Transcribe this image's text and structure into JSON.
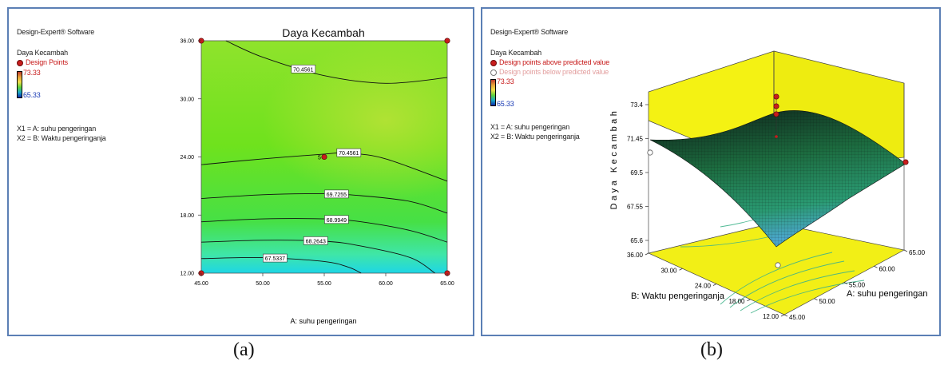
{
  "panel_a": {
    "software": "Design-Expert® Software",
    "response": "Daya Kecambah",
    "points_label": "Design Points",
    "max": "73.33",
    "min": "65.33",
    "x1": "X1 = A: suhu pengeringan",
    "x2": "X2 = B: Waktu pengeringanja",
    "caption": "(a)"
  },
  "panel_b": {
    "software": "Design-Expert® Software",
    "response": "Daya Kecambah",
    "above": "Design points above predicted value",
    "below": "Design points below predicted value",
    "max": "73.33",
    "min": "65.33",
    "x1": "X1 = A: suhu pengeringan",
    "x2": "X2 = B: Waktu pengeringanja",
    "caption": "(b)"
  },
  "chart_data": [
    {
      "type": "contour",
      "title": "Daya Kecambah",
      "xlabel": "A: suhu pengeringan",
      "ylabel": "",
      "x_ticks": [
        "45.00",
        "50.00",
        "55.00",
        "60.00",
        "65.00"
      ],
      "y_ticks": [
        "12.00",
        "18.00",
        "24.00",
        "30.00",
        "36.00"
      ],
      "xlim": [
        45,
        65
      ],
      "ylim": [
        12,
        36
      ],
      "contour_labels": [
        "70.4561",
        "70.4561",
        "69.7255",
        "68.9949",
        "68.2643",
        "67.5337"
      ],
      "contours": [
        {
          "level": 70.4561,
          "points": [
            [
              47,
              36
            ],
            [
              50,
              34.3
            ],
            [
              55,
              32.4
            ],
            [
              60,
              31.6
            ],
            [
              65,
              32.2
            ]
          ]
        },
        {
          "level": 70.4561,
          "points": [
            [
              45,
              23.2
            ],
            [
              50,
              23.8
            ],
            [
              55,
              24.3
            ],
            [
              57,
              24.4
            ],
            [
              60,
              23.8
            ],
            [
              65,
              21.5
            ]
          ]
        },
        {
          "level": 69.7255,
          "points": [
            [
              45,
              19.7
            ],
            [
              50,
              20.1
            ],
            [
              55,
              20.2
            ],
            [
              58,
              20
            ],
            [
              62,
              19.4
            ],
            [
              65,
              18.2
            ]
          ]
        },
        {
          "level": 68.9949,
          "points": [
            [
              45,
              17.3
            ],
            [
              50,
              17.6
            ],
            [
              55,
              17.6
            ],
            [
              58,
              17.3
            ],
            [
              62,
              16.4
            ],
            [
              65,
              15.2
            ]
          ]
        },
        {
          "level": 68.2643,
          "points": [
            [
              45,
              15.2
            ],
            [
              50,
              15.4
            ],
            [
              55,
              15.3
            ],
            [
              58,
              14.8
            ],
            [
              62,
              13.6
            ],
            [
              64,
              12
            ]
          ]
        },
        {
          "level": 67.5337,
          "points": [
            [
              45,
              13.5
            ],
            [
              50,
              13.6
            ],
            [
              55,
              13.2
            ],
            [
              57,
              12.6
            ],
            [
              58,
              12
            ]
          ]
        }
      ],
      "design_points": [
        {
          "x": 45,
          "y": 12
        },
        {
          "x": 65,
          "y": 12
        },
        {
          "x": 45,
          "y": 36
        },
        {
          "x": 65,
          "y": 36
        },
        {
          "x": 55,
          "y": 24,
          "label": "5"
        }
      ]
    },
    {
      "type": "surface3d",
      "zlabel": "Daya Kecambah",
      "xlabel": "A: suhu pengeringan",
      "ylabel": "B: Waktu pengeringanja",
      "x_ticks": [
        "45.00",
        "50.00",
        "55.00",
        "60.00",
        "65.00"
      ],
      "y_ticks": [
        "12.00",
        "18.00",
        "24.00",
        "30.00",
        "36.00"
      ],
      "z_ticks": [
        "65.6",
        "67.55",
        "69.5",
        "71.45",
        "73.4"
      ],
      "zlim": [
        65.6,
        73.4
      ]
    }
  ]
}
